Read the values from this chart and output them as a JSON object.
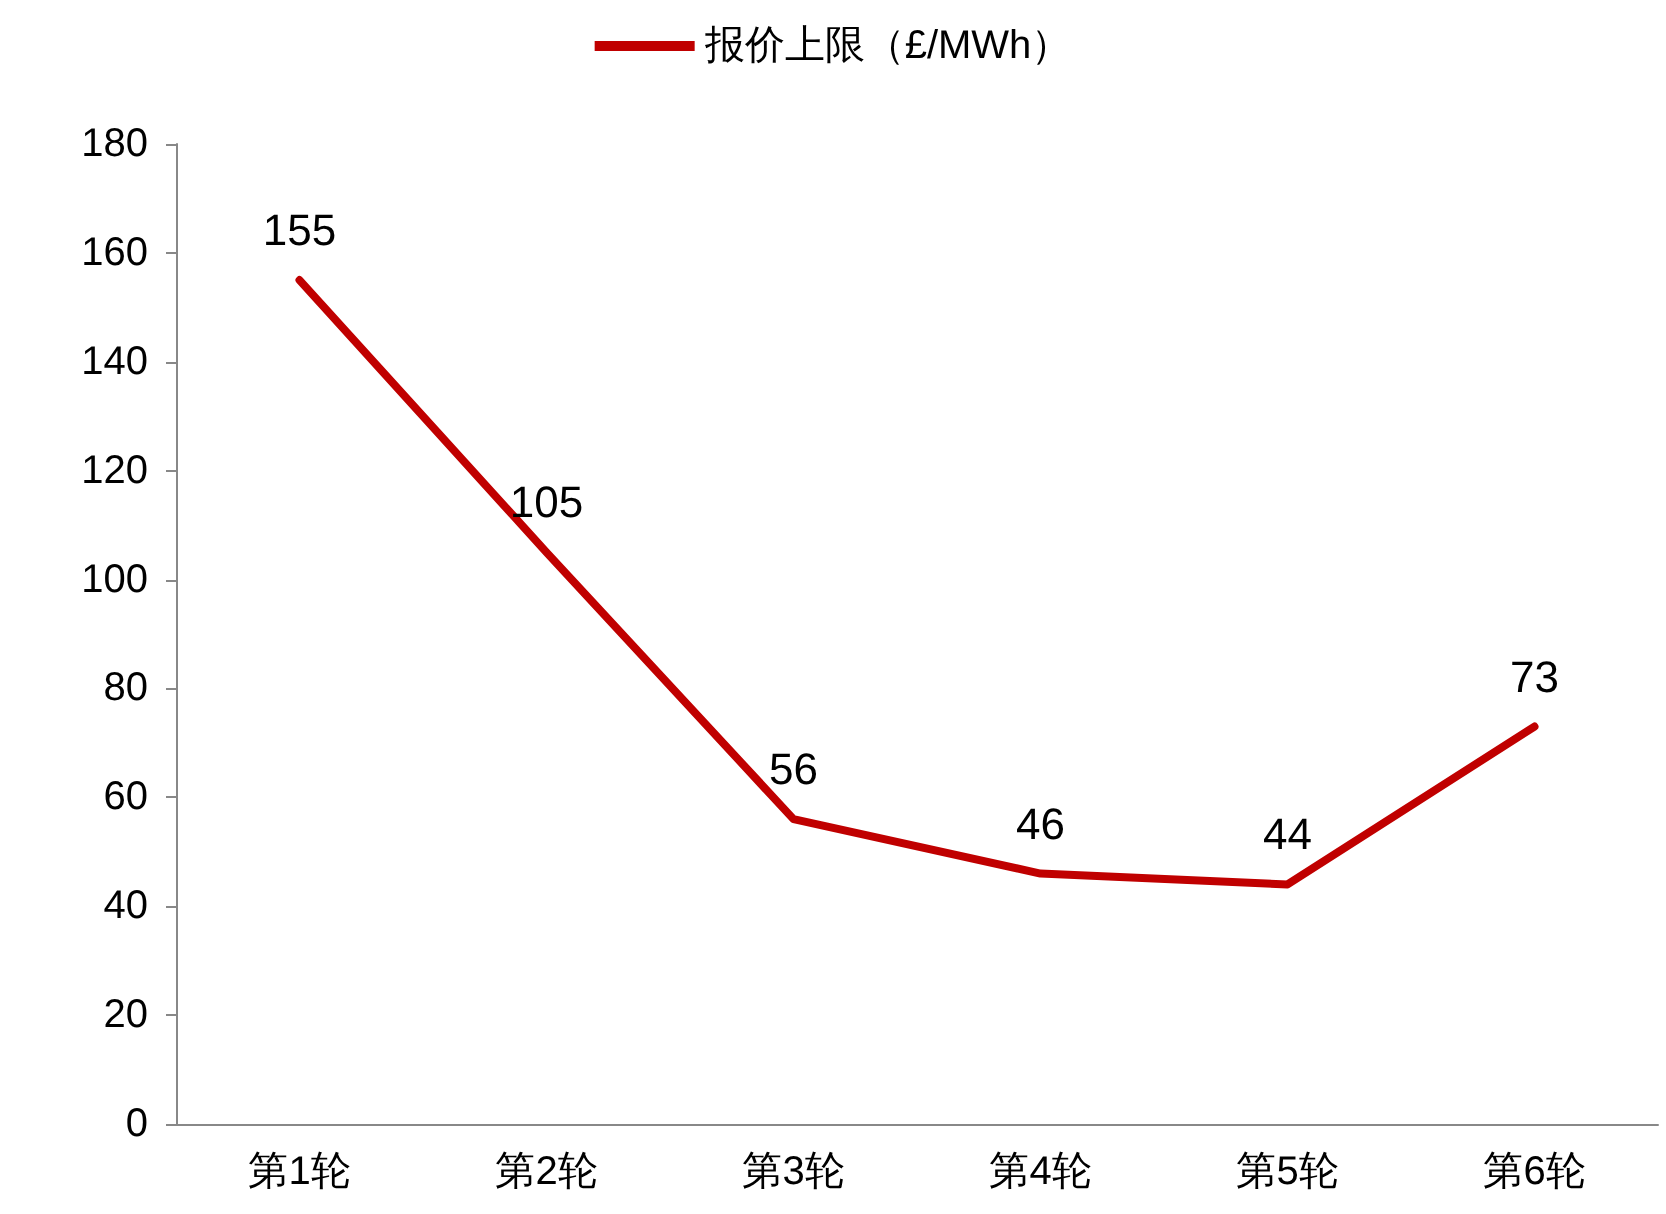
{
  "chart_data": {
    "type": "line",
    "categories": [
      "第1轮",
      "第2轮",
      "第3轮",
      "第4轮",
      "第5轮",
      "第6轮"
    ],
    "series": [
      {
        "name": "报价上限（£/MWh）",
        "color": "#c00000",
        "values": [
          155,
          105,
          56,
          46,
          44,
          73
        ]
      }
    ],
    "ylim": [
      0,
      180
    ],
    "yticks": [
      0,
      20,
      40,
      60,
      80,
      100,
      120,
      140,
      160,
      180
    ],
    "grid": false,
    "legend": "top",
    "marker": "none",
    "line_style": "solid",
    "data_labels": true
  }
}
